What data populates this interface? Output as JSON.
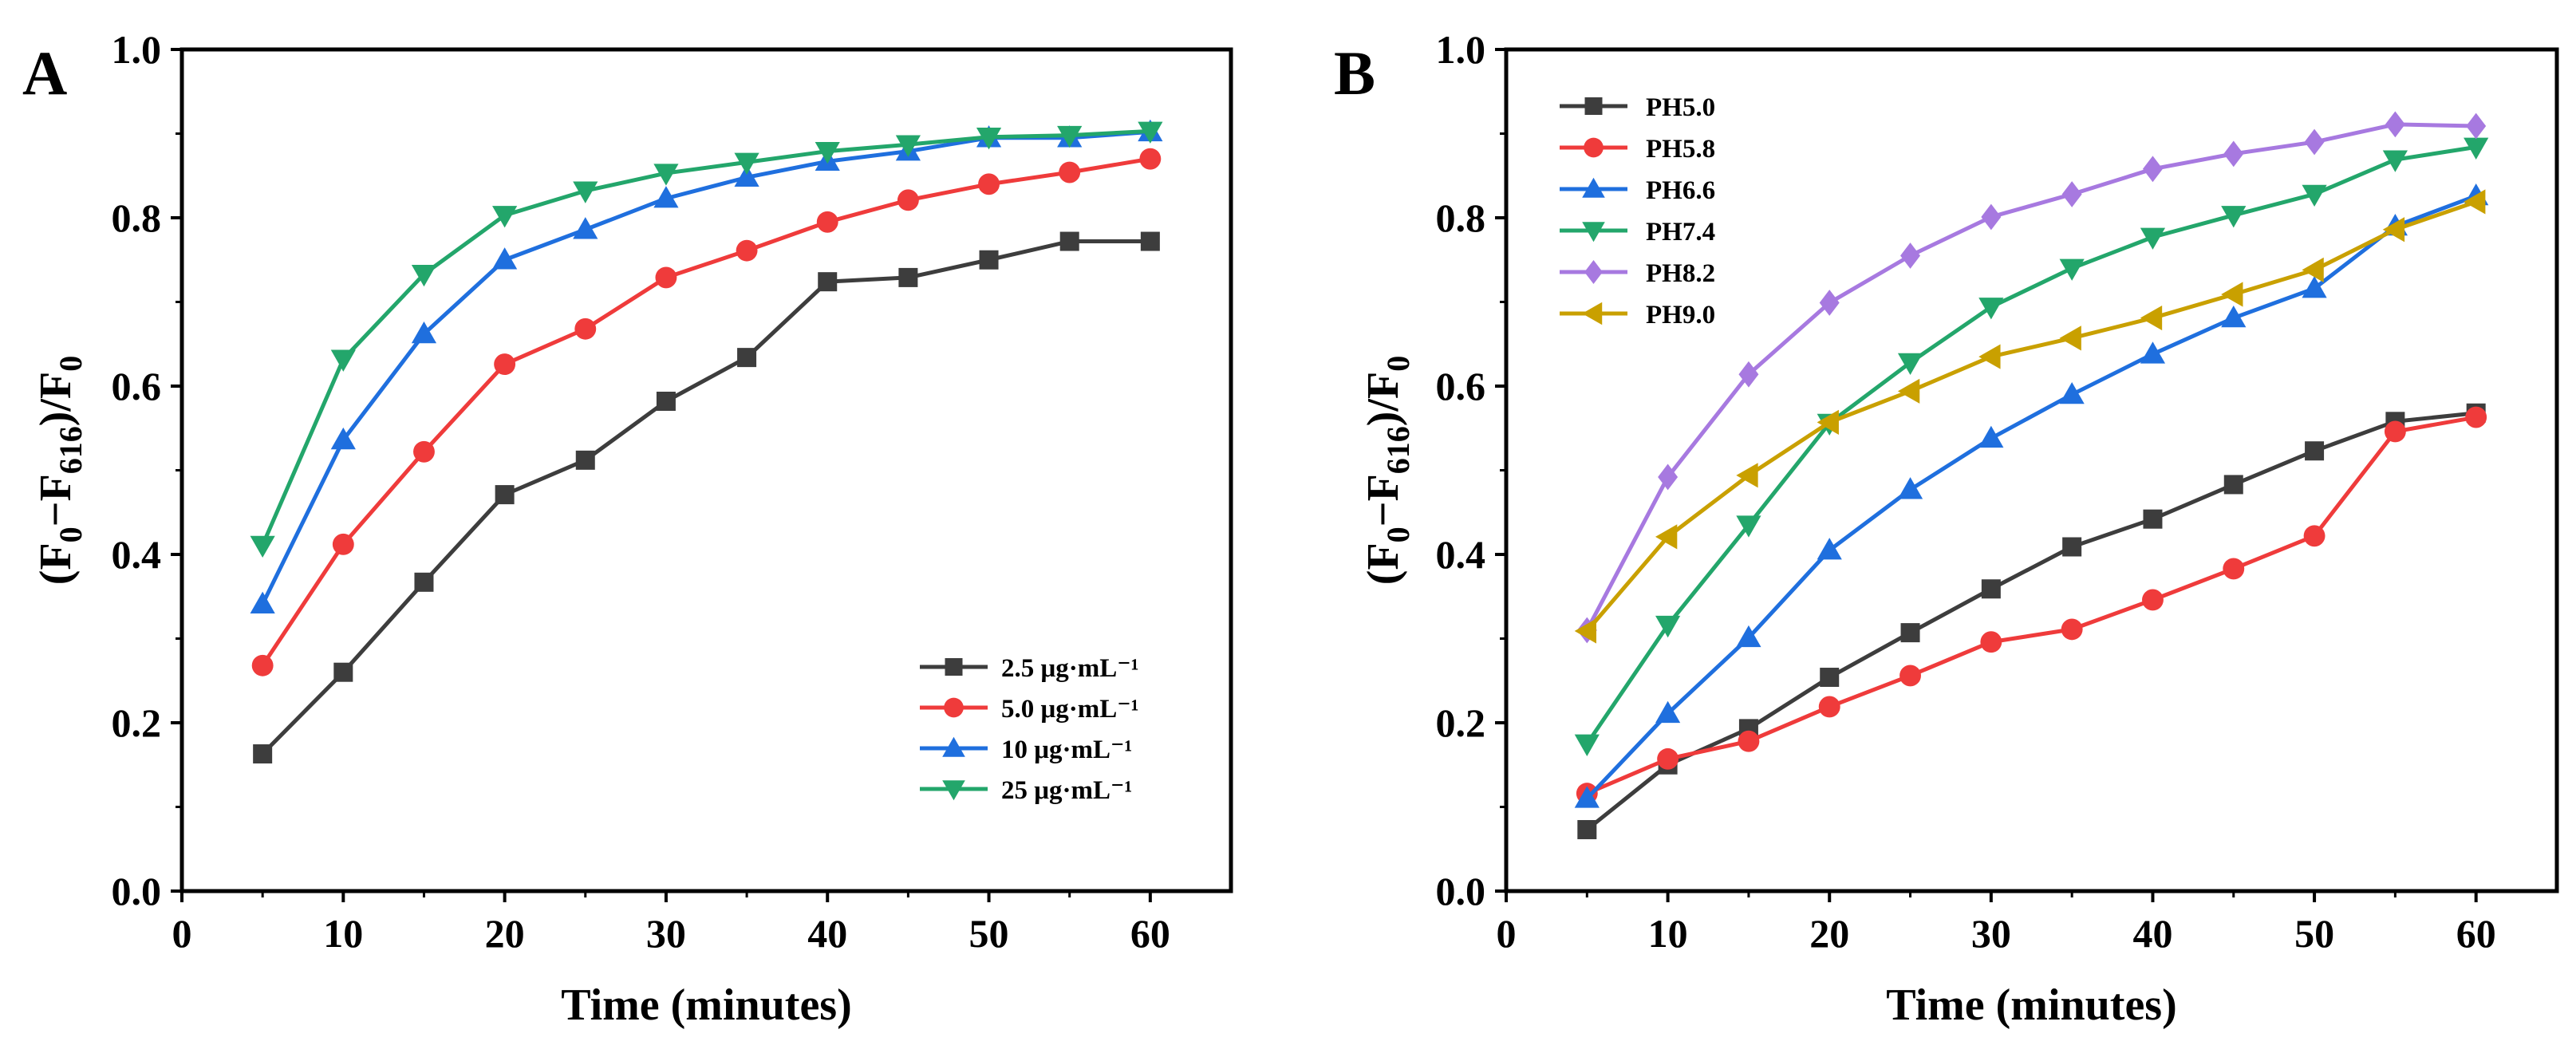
{
  "chart_data": [
    {
      "panel": "A",
      "type": "line",
      "xlabel": "Time (minutes)",
      "ylabel": "(F0−F616)/F0",
      "xlim": [
        0,
        65
      ],
      "ylim": [
        0,
        1.0
      ],
      "xticks": [
        "0",
        "10",
        "20",
        "30",
        "40",
        "50",
        "60"
      ],
      "yticks": [
        "0.0",
        "0.2",
        "0.4",
        "0.6",
        "0.8",
        "1.0"
      ],
      "x": [
        5,
        10,
        15,
        20,
        25,
        30,
        35,
        40,
        45,
        50,
        55,
        60
      ],
      "legend_position": "bottom-right",
      "series": [
        {
          "name": "2.5 μg·mL⁻¹",
          "color": "#3d3d3d",
          "marker": "square",
          "values": [
            0.163,
            0.26,
            0.367,
            0.471,
            0.512,
            0.582,
            0.634,
            0.724,
            0.729,
            0.75,
            0.772,
            0.772
          ]
        },
        {
          "name": "5.0 μg·mL⁻¹",
          "color": "#ef3b3b",
          "marker": "circle",
          "values": [
            0.268,
            0.412,
            0.522,
            0.626,
            0.668,
            0.729,
            0.761,
            0.795,
            0.821,
            0.84,
            0.854,
            0.87
          ]
        },
        {
          "name": "10  μg·mL⁻¹",
          "color": "#1f6fde",
          "marker": "triangle-up",
          "values": [
            0.341,
            0.536,
            0.662,
            0.75,
            0.786,
            0.823,
            0.848,
            0.867,
            0.879,
            0.895,
            0.895,
            0.902
          ]
        },
        {
          "name": "25  μg·mL⁻¹",
          "color": "#23a66b",
          "marker": "triangle-down",
          "values": [
            0.411,
            0.632,
            0.733,
            0.803,
            0.832,
            0.853,
            0.866,
            0.879,
            0.887,
            0.896,
            0.898,
            0.903
          ]
        }
      ]
    },
    {
      "panel": "B",
      "type": "line",
      "xlabel": "Time (minutes)",
      "ylabel": "(F0−F616)/F0",
      "xlim": [
        0,
        65
      ],
      "ylim": [
        0,
        1.0
      ],
      "xticks": [
        "0",
        "10",
        "20",
        "30",
        "40",
        "50",
        "60"
      ],
      "yticks": [
        "0.0",
        "0.2",
        "0.4",
        "0.6",
        "0.8",
        "1.0"
      ],
      "x": [
        5,
        10,
        15,
        20,
        25,
        30,
        35,
        40,
        45,
        50,
        55,
        60
      ],
      "legend_position": "top-left",
      "series": [
        {
          "name": "PH5.0",
          "color": "#3d3d3d",
          "marker": "square",
          "values": [
            0.073,
            0.15,
            0.193,
            0.254,
            0.307,
            0.359,
            0.409,
            0.442,
            0.483,
            0.523,
            0.558,
            0.568
          ]
        },
        {
          "name": "PH5.8",
          "color": "#ef3b3b",
          "marker": "circle",
          "values": [
            0.116,
            0.157,
            0.178,
            0.219,
            0.256,
            0.296,
            0.311,
            0.346,
            0.383,
            0.422,
            0.546,
            0.563
          ]
        },
        {
          "name": "PH6.6",
          "color": "#1f6fde",
          "marker": "triangle-up",
          "values": [
            0.11,
            0.211,
            0.301,
            0.405,
            0.477,
            0.538,
            0.59,
            0.638,
            0.681,
            0.716,
            0.79,
            0.826
          ]
        },
        {
          "name": "PH7.4",
          "color": "#23a66b",
          "marker": "triangle-down",
          "values": [
            0.175,
            0.316,
            0.435,
            0.556,
            0.628,
            0.694,
            0.74,
            0.777,
            0.803,
            0.828,
            0.869,
            0.884
          ]
        },
        {
          "name": "PH8.2",
          "color": "#a779e0",
          "marker": "diamond",
          "values": [
            0.31,
            0.492,
            0.614,
            0.699,
            0.755,
            0.801,
            0.828,
            0.858,
            0.876,
            0.89,
            0.911,
            0.909
          ]
        },
        {
          "name": "PH9.0",
          "color": "#c9a000",
          "marker": "triangle-left",
          "values": [
            0.309,
            0.421,
            0.494,
            0.557,
            0.594,
            0.635,
            0.657,
            0.681,
            0.709,
            0.738,
            0.786,
            0.819
          ]
        }
      ]
    }
  ]
}
